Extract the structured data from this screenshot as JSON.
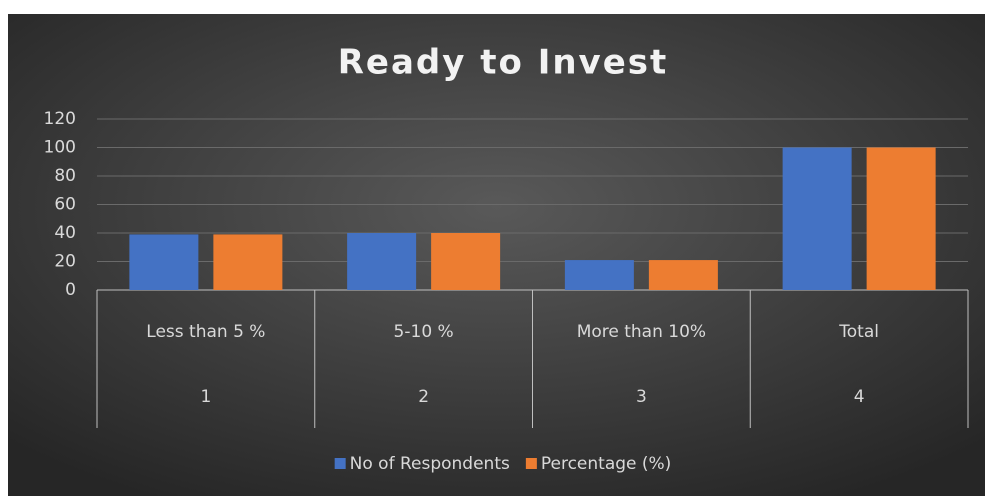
{
  "chart_data": {
    "type": "bar",
    "title": "Ready to Invest",
    "categories": [
      "Less than 5 %",
      "5-10 %",
      "More than 10%",
      "Total"
    ],
    "category_numbers": [
      1,
      2,
      3,
      4
    ],
    "series": [
      {
        "name": "No of Respondents",
        "color": "#4472c4",
        "values": [
          39,
          40,
          21,
          100
        ]
      },
      {
        "name": "Percentage (%)",
        "color": "#ed7d31",
        "values": [
          39,
          40,
          21,
          100
        ]
      }
    ],
    "ylim": [
      0,
      120
    ],
    "yticks": [
      0,
      20,
      40,
      60,
      80,
      100,
      120
    ],
    "grid": true,
    "legend": "bottom"
  }
}
